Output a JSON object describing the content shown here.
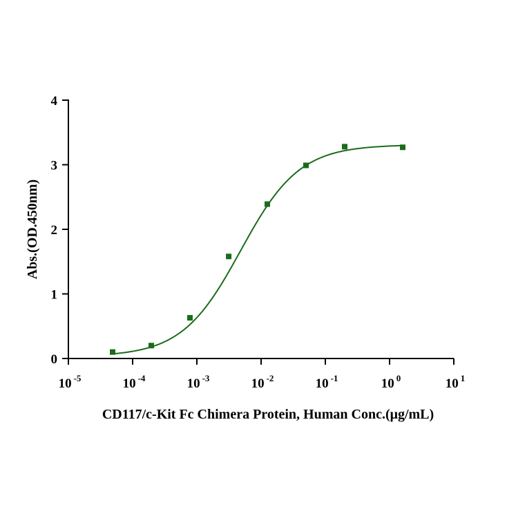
{
  "chart_data": {
    "type": "scatter",
    "title": "",
    "xlabel": "CD117/c-Kit Fc Chimera Protein, Human Conc.(μg/mL)",
    "ylabel": "Abs.(OD.450nm)",
    "x_scale": "log",
    "xlim": [
      1e-05,
      10
    ],
    "ylim": [
      0,
      4
    ],
    "x_ticks": [
      {
        "base": "10",
        "exp": "-5",
        "value": 1e-05
      },
      {
        "base": "10",
        "exp": "-4",
        "value": 0.0001
      },
      {
        "base": "10",
        "exp": "-3",
        "value": 0.001
      },
      {
        "base": "10",
        "exp": "-2",
        "value": 0.01
      },
      {
        "base": "10",
        "exp": "-1",
        "value": 0.1
      },
      {
        "base": "10",
        "exp": "0",
        "value": 1
      },
      {
        "base": "10",
        "exp": "1",
        "value": 10
      }
    ],
    "y_ticks": [
      "0",
      "1",
      "2",
      "3",
      "4"
    ],
    "grid": false,
    "legend": "none",
    "series": [
      {
        "color": "#1a6b1a",
        "marker": "square",
        "x": [
          4.88e-05,
          0.000195,
          0.00078,
          0.00313,
          0.0125,
          0.05,
          0.2,
          1.6
        ],
        "y": [
          0.1,
          0.2,
          0.63,
          1.58,
          2.39,
          2.99,
          3.28,
          3.27
        ]
      }
    ],
    "fit_curve": {
      "color": "#1a6b1a",
      "model": "four-parameter logistic",
      "bottom": 0.03,
      "top": 3.31,
      "ec50": 0.0048,
      "hill": 0.95
    }
  }
}
